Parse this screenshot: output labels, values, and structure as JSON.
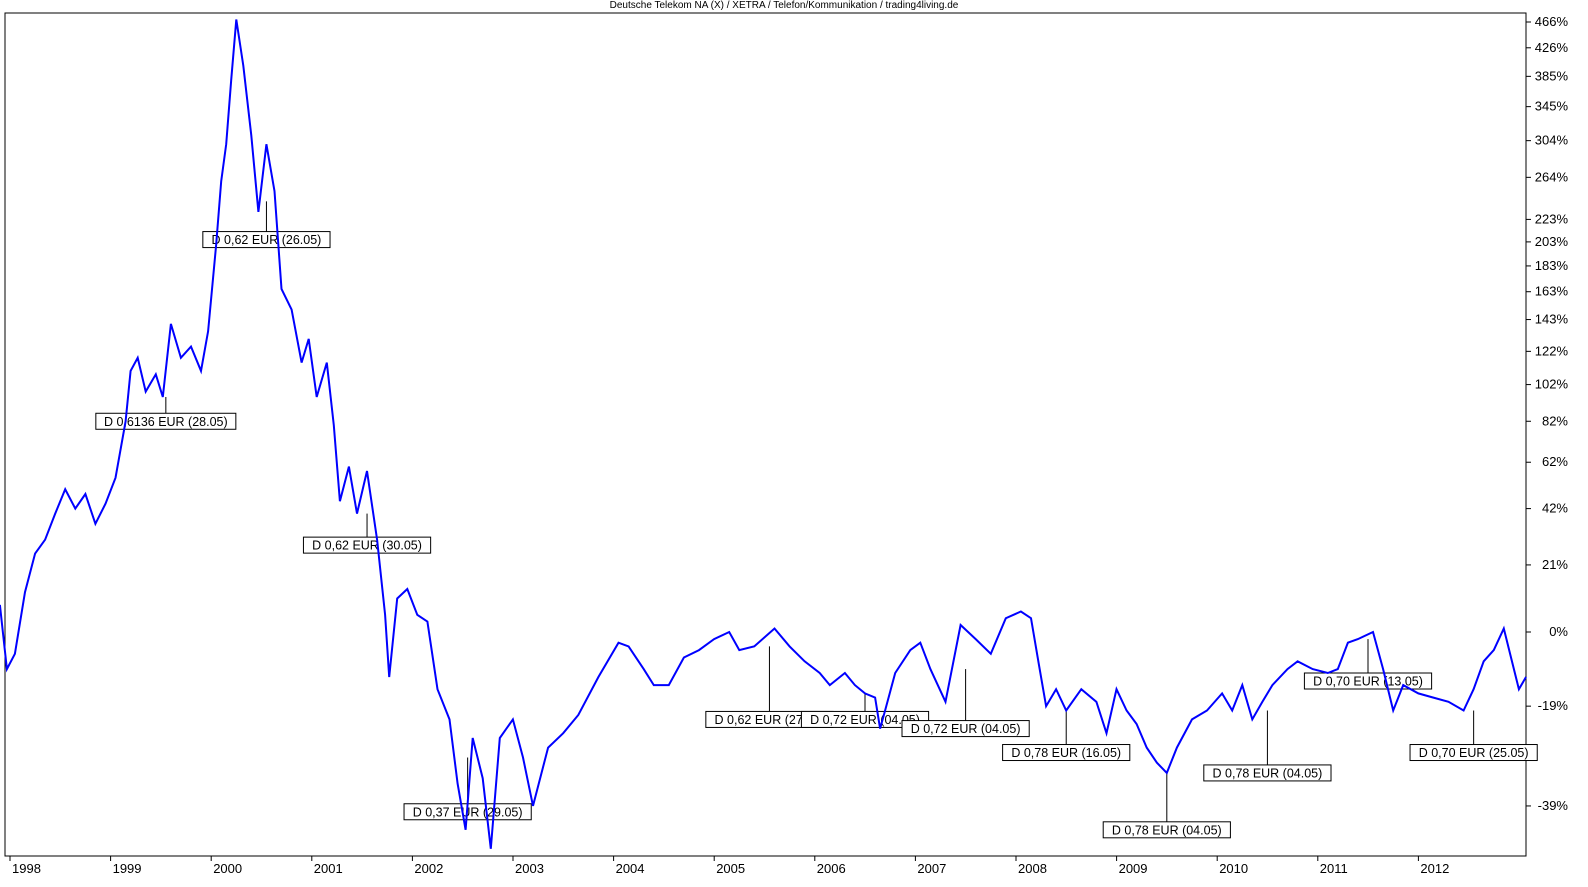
{
  "chart_data": {
    "type": "line",
    "title": "Deutsche Telekom NA (X) / XETRA / Telefon/Kommunikation / trading4living.de",
    "x_tick_labels": [
      "1998",
      "1999",
      "2000",
      "2001",
      "2002",
      "2003",
      "2004",
      "2005",
      "2006",
      "2007",
      "2008",
      "2009",
      "2010",
      "2011",
      "2012"
    ],
    "y_tick_labels": [
      "466%",
      "426%",
      "385%",
      "345%",
      "304%",
      "264%",
      "223%",
      "203%",
      "183%",
      "163%",
      "143%",
      "122%",
      "102%",
      "82%",
      "62%",
      "42%",
      "21%",
      "0%",
      "-19%",
      "-39%"
    ],
    "y_axis_position": "right",
    "y_scale": "log",
    "grid": false,
    "series": [
      {
        "color": "#0000ff",
        "points": [
          [
            1997.75,
            8
          ],
          [
            1997.82,
            -10
          ],
          [
            1997.9,
            -6
          ],
          [
            1998.0,
            12
          ],
          [
            1998.1,
            25
          ],
          [
            1998.2,
            30
          ],
          [
            1998.3,
            40
          ],
          [
            1998.4,
            50
          ],
          [
            1998.5,
            42
          ],
          [
            1998.6,
            48
          ],
          [
            1998.7,
            36
          ],
          [
            1998.8,
            44
          ],
          [
            1998.9,
            55
          ],
          [
            1999.0,
            82
          ],
          [
            1999.05,
            110
          ],
          [
            1999.12,
            118
          ],
          [
            1999.2,
            98
          ],
          [
            1999.3,
            108
          ],
          [
            1999.37,
            95
          ],
          [
            1999.45,
            140
          ],
          [
            1999.55,
            118
          ],
          [
            1999.65,
            125
          ],
          [
            1999.75,
            110
          ],
          [
            1999.82,
            135
          ],
          [
            1999.9,
            200
          ],
          [
            1999.95,
            260
          ],
          [
            2000.0,
            300
          ],
          [
            2000.05,
            380
          ],
          [
            2000.1,
            470
          ],
          [
            2000.17,
            400
          ],
          [
            2000.25,
            310
          ],
          [
            2000.32,
            230
          ],
          [
            2000.4,
            300
          ],
          [
            2000.48,
            250
          ],
          [
            2000.55,
            165
          ],
          [
            2000.65,
            150
          ],
          [
            2000.75,
            115
          ],
          [
            2000.82,
            130
          ],
          [
            2000.9,
            95
          ],
          [
            2001.0,
            115
          ],
          [
            2001.07,
            80
          ],
          [
            2001.13,
            45
          ],
          [
            2001.22,
            60
          ],
          [
            2001.3,
            40
          ],
          [
            2001.4,
            58
          ],
          [
            2001.5,
            30
          ],
          [
            2001.58,
            5
          ],
          [
            2001.62,
            -12
          ],
          [
            2001.7,
            10
          ],
          [
            2001.8,
            13
          ],
          [
            2001.9,
            5
          ],
          [
            2002.0,
            3
          ],
          [
            2002.1,
            -15
          ],
          [
            2002.22,
            -22
          ],
          [
            2002.3,
            -35
          ],
          [
            2002.38,
            -43
          ],
          [
            2002.45,
            -26
          ],
          [
            2002.55,
            -34
          ],
          [
            2002.63,
            -46
          ],
          [
            2002.72,
            -26
          ],
          [
            2002.85,
            -22
          ],
          [
            2002.95,
            -30
          ],
          [
            2003.05,
            -39
          ],
          [
            2003.2,
            -28
          ],
          [
            2003.35,
            -25
          ],
          [
            2003.5,
            -21
          ],
          [
            2003.7,
            -12
          ],
          [
            2003.9,
            -3
          ],
          [
            2004.0,
            -4
          ],
          [
            2004.15,
            -10
          ],
          [
            2004.25,
            -14
          ],
          [
            2004.4,
            -14
          ],
          [
            2004.55,
            -7
          ],
          [
            2004.7,
            -5
          ],
          [
            2004.85,
            -2
          ],
          [
            2005.0,
            0
          ],
          [
            2005.1,
            -5
          ],
          [
            2005.25,
            -4
          ],
          [
            2005.45,
            1
          ],
          [
            2005.6,
            -4
          ],
          [
            2005.75,
            -8
          ],
          [
            2005.9,
            -11
          ],
          [
            2006.0,
            -14
          ],
          [
            2006.15,
            -11
          ],
          [
            2006.25,
            -14
          ],
          [
            2006.35,
            -16
          ],
          [
            2006.45,
            -17
          ],
          [
            2006.5,
            -24
          ],
          [
            2006.55,
            -20
          ],
          [
            2006.65,
            -11
          ],
          [
            2006.8,
            -5
          ],
          [
            2006.9,
            -3
          ],
          [
            2007.0,
            -10
          ],
          [
            2007.15,
            -18
          ],
          [
            2007.3,
            2
          ],
          [
            2007.45,
            -2
          ],
          [
            2007.6,
            -6
          ],
          [
            2007.75,
            4
          ],
          [
            2007.9,
            6
          ],
          [
            2008.0,
            4
          ],
          [
            2008.08,
            -9
          ],
          [
            2008.15,
            -19
          ],
          [
            2008.25,
            -15
          ],
          [
            2008.35,
            -20
          ],
          [
            2008.5,
            -15
          ],
          [
            2008.65,
            -18
          ],
          [
            2008.75,
            -25
          ],
          [
            2008.85,
            -15
          ],
          [
            2008.95,
            -20
          ],
          [
            2009.05,
            -23
          ],
          [
            2009.15,
            -28
          ],
          [
            2009.25,
            -31
          ],
          [
            2009.35,
            -33
          ],
          [
            2009.45,
            -28
          ],
          [
            2009.6,
            -22
          ],
          [
            2009.75,
            -20
          ],
          [
            2009.9,
            -16
          ],
          [
            2010.0,
            -20
          ],
          [
            2010.1,
            -14
          ],
          [
            2010.2,
            -22
          ],
          [
            2010.3,
            -18
          ],
          [
            2010.4,
            -14
          ],
          [
            2010.55,
            -10
          ],
          [
            2010.65,
            -8
          ],
          [
            2010.8,
            -10
          ],
          [
            2010.95,
            -11
          ],
          [
            2011.05,
            -10
          ],
          [
            2011.15,
            -3
          ],
          [
            2011.25,
            -2
          ],
          [
            2011.4,
            0
          ],
          [
            2011.5,
            -10
          ],
          [
            2011.6,
            -20
          ],
          [
            2011.7,
            -14
          ],
          [
            2011.85,
            -16
          ],
          [
            2012.0,
            -17
          ],
          [
            2012.15,
            -18
          ],
          [
            2012.3,
            -20
          ],
          [
            2012.4,
            -15
          ],
          [
            2012.5,
            -8
          ],
          [
            2012.6,
            -5
          ],
          [
            2012.7,
            1
          ],
          [
            2012.8,
            -10
          ],
          [
            2012.85,
            -15
          ],
          [
            2012.92,
            -12
          ]
        ]
      }
    ],
    "dividends": [
      {
        "label": "D 0,6136 EUR (28.05)",
        "x": 1999.4,
        "y": 82,
        "anchor_y": 95
      },
      {
        "label": "D 0,62 EUR (26.05)",
        "x": 2000.4,
        "y": 205,
        "anchor_y": 240
      },
      {
        "label": "D 0,62 EUR (30.05)",
        "x": 2001.4,
        "y": 28,
        "anchor_y": 40
      },
      {
        "label": "D 0,37 EUR (29.05)",
        "x": 2002.4,
        "y": -40,
        "anchor_y": -30
      },
      {
        "label": "D 0,62 EUR (27.05)",
        "x": 2005.4,
        "y": -22,
        "anchor_y": -4
      },
      {
        "label": "D 0,72 EUR (04.05)",
        "x": 2006.35,
        "y": -22,
        "anchor_y": -16
      },
      {
        "label": "D 0,72 EUR (04.05)",
        "x": 2007.35,
        "y": -24,
        "anchor_y": -10
      },
      {
        "label": "D 0,78 EUR (16.05)",
        "x": 2008.35,
        "y": -29,
        "anchor_y": -20
      },
      {
        "label": "D 0,78 EUR (04.05)",
        "x": 2009.35,
        "y": -43,
        "anchor_y": -33
      },
      {
        "label": "D 0,78 EUR (04.05)",
        "x": 2010.35,
        "y": -33,
        "anchor_y": -20
      },
      {
        "label": "D 0,70 EUR (13.05)",
        "x": 2011.35,
        "y": -13,
        "anchor_y": -2
      },
      {
        "label": "D 0,70 EUR (25.05)",
        "x": 2012.4,
        "y": -29,
        "anchor_y": -20
      }
    ]
  }
}
